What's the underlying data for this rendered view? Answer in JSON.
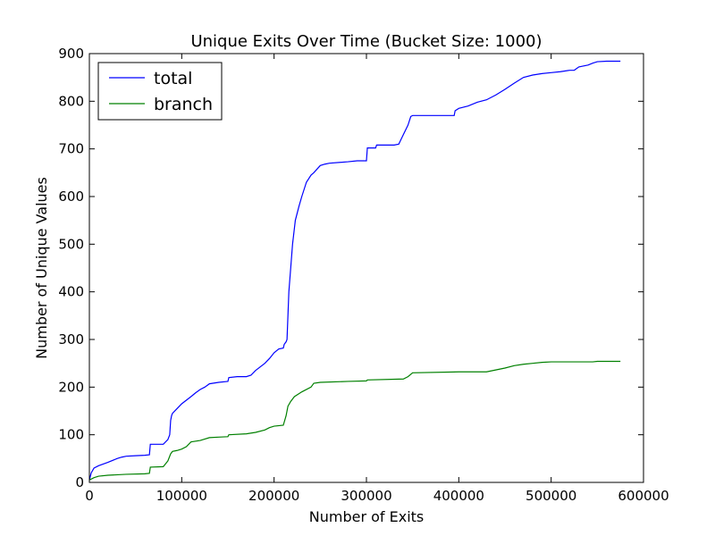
{
  "chart_data": {
    "type": "line",
    "title": "Unique Exits Over Time (Bucket Size: 1000)",
    "xlabel": "Number of Exits",
    "ylabel": "Number of Unique Values",
    "xlim": [
      0,
      600000
    ],
    "ylim": [
      0,
      900
    ],
    "x_ticks": [
      0,
      100000,
      200000,
      300000,
      400000,
      500000,
      600000
    ],
    "x_tick_labels": [
      "0",
      "100000",
      "200000",
      "300000",
      "400000",
      "500000",
      "600000"
    ],
    "y_ticks": [
      0,
      100,
      200,
      300,
      400,
      500,
      600,
      700,
      800,
      900
    ],
    "y_tick_labels": [
      "0",
      "100",
      "200",
      "300",
      "400",
      "500",
      "600",
      "700",
      "800",
      "900"
    ],
    "grid": false,
    "legend_position": "top-left",
    "series": [
      {
        "name": "total",
        "color": "#0000ff",
        "x": [
          0,
          2000,
          5000,
          10000,
          20000,
          30000,
          35000,
          40000,
          50000,
          60000,
          65000,
          66000,
          80000,
          85000,
          87000,
          88000,
          89000,
          90000,
          95000,
          100000,
          110000,
          115000,
          120000,
          125000,
          130000,
          140000,
          150000,
          151000,
          160000,
          170000,
          175000,
          180000,
          190000,
          195000,
          200000,
          205000,
          210000,
          211000,
          213000,
          214000,
          215000,
          216000,
          218000,
          220000,
          223000,
          227000,
          230000,
          235000,
          240000,
          243000,
          250000,
          255000,
          260000,
          280000,
          290000,
          300000,
          301000,
          310000,
          311000,
          330000,
          335000,
          340000,
          345000,
          348000,
          350000,
          360000,
          380000,
          395000,
          396000,
          400000,
          410000,
          420000,
          430000,
          440000,
          450000,
          460000,
          470000,
          480000,
          490000,
          500000,
          510000,
          520000,
          525000,
          530000,
          540000,
          545000,
          550000,
          560000,
          575000
        ],
        "values": [
          5,
          20,
          30,
          35,
          42,
          50,
          53,
          55,
          56,
          57,
          58,
          80,
          80,
          90,
          100,
          130,
          140,
          145,
          155,
          165,
          180,
          188,
          195,
          200,
          207,
          210,
          212,
          220,
          222,
          222,
          225,
          235,
          250,
          260,
          272,
          280,
          282,
          290,
          295,
          300,
          350,
          400,
          450,
          500,
          550,
          580,
          600,
          630,
          645,
          650,
          665,
          668,
          670,
          673,
          675,
          675,
          702,
          702,
          708,
          708,
          710,
          730,
          750,
          768,
          770,
          770,
          770,
          770,
          780,
          785,
          790,
          798,
          803,
          813,
          825,
          838,
          850,
          855,
          858,
          860,
          862,
          865,
          865,
          872,
          876,
          880,
          883,
          884,
          884
        ]
      },
      {
        "name": "branch",
        "color": "#008000",
        "x": [
          0,
          5000,
          10000,
          20000,
          40000,
          60000,
          65000,
          66000,
          80000,
          85000,
          88000,
          90000,
          95000,
          100000,
          105000,
          110000,
          120000,
          130000,
          140000,
          150000,
          151000,
          170000,
          180000,
          190000,
          195000,
          200000,
          210000,
          213000,
          215000,
          218000,
          222000,
          230000,
          240000,
          243000,
          250000,
          280000,
          300000,
          301000,
          340000,
          345000,
          350000,
          400000,
          430000,
          440000,
          450000,
          460000,
          470000,
          480000,
          490000,
          500000,
          545000,
          550000,
          575000
        ],
        "values": [
          5,
          10,
          13,
          15,
          17,
          18,
          19,
          32,
          33,
          45,
          60,
          65,
          67,
          70,
          75,
          85,
          88,
          94,
          95,
          96,
          100,
          102,
          105,
          110,
          115,
          118,
          120,
          140,
          160,
          170,
          180,
          190,
          200,
          208,
          210,
          212,
          213,
          215,
          217,
          222,
          230,
          232,
          232,
          236,
          240,
          245,
          248,
          250,
          252,
          253,
          253,
          254,
          254
        ]
      }
    ]
  }
}
